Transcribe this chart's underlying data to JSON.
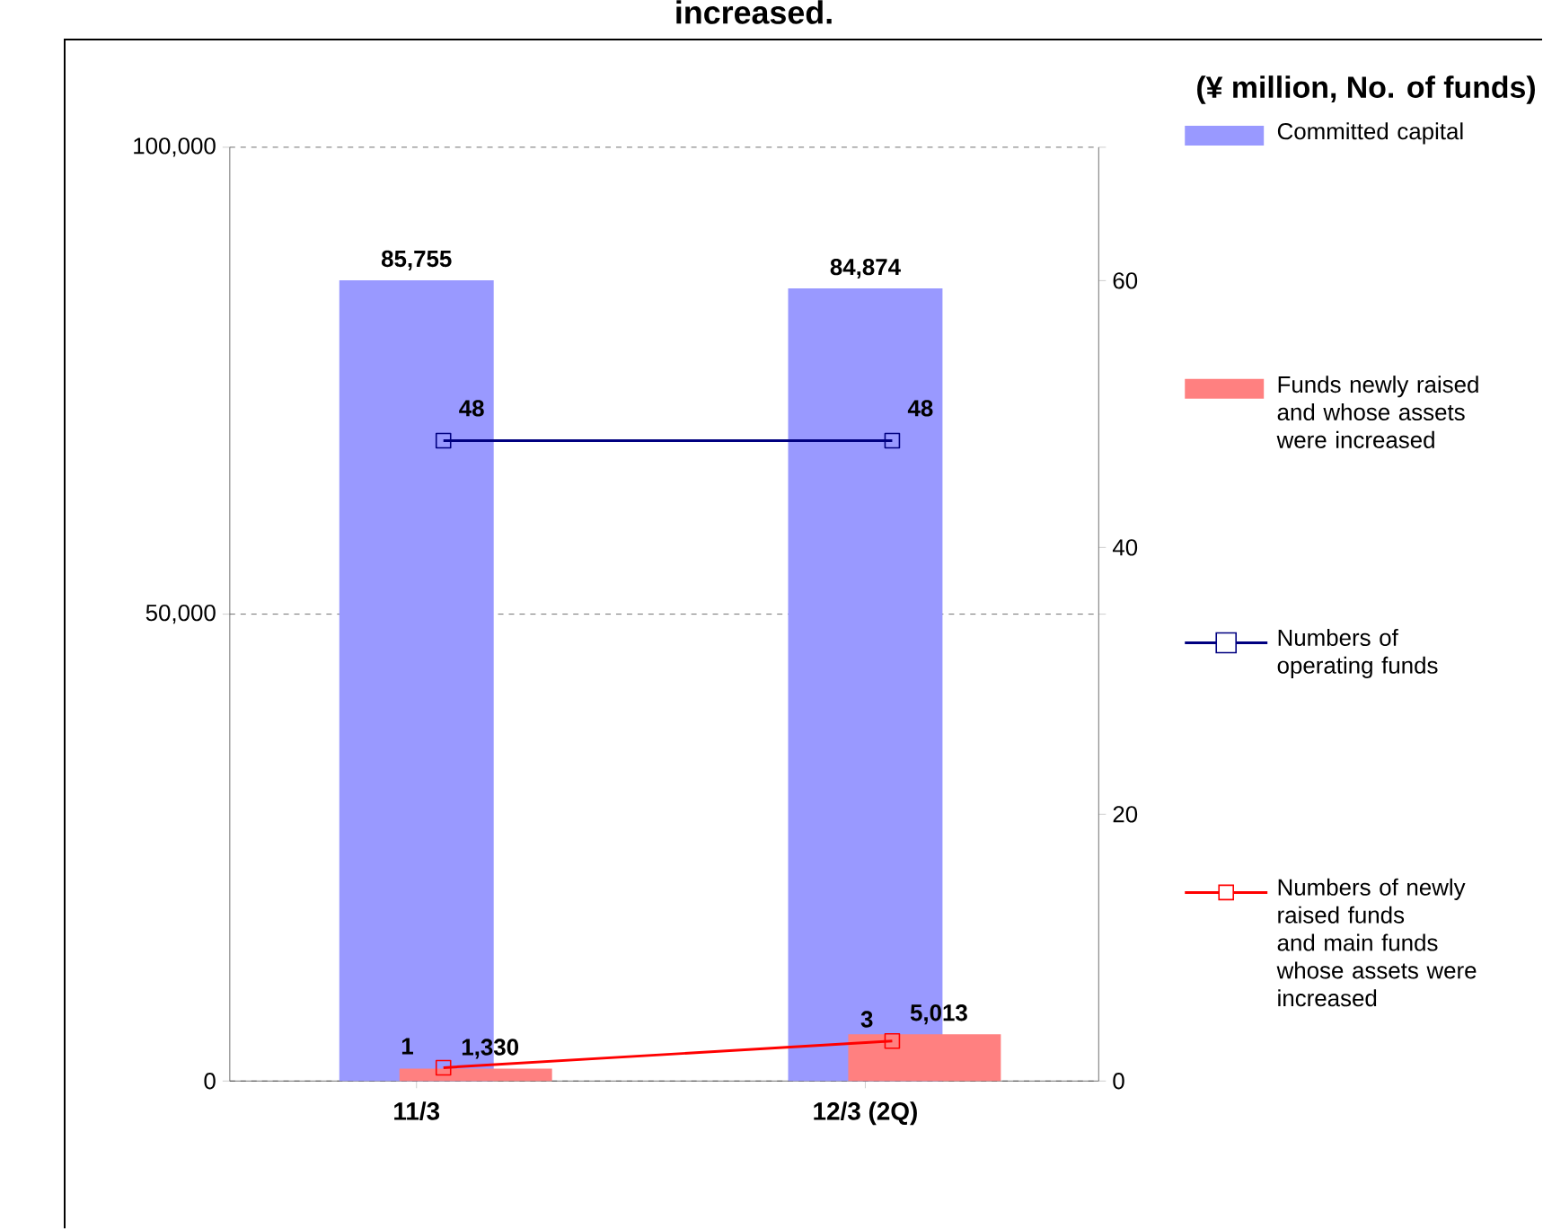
{
  "chart_data": {
    "type": "bar",
    "title": "increased.",
    "annotations": [
      "(¥ million, No. of funds)"
    ],
    "categories": [
      "11/3",
      "12/3 (2Q)"
    ],
    "series": [
      {
        "name": "Committed capital",
        "color": "#9999ff",
        "values": [
          85755,
          84874
        ],
        "value_labels": [
          "85,755",
          "84,874"
        ]
      },
      {
        "name": "Funds newly raised and whose assets were increased",
        "color": "#ff8080",
        "values": [
          1330,
          5013
        ],
        "value_labels": [
          "1,330",
          "5,013"
        ]
      },
      {
        "name": "Numbers of operating funds",
        "type": "line",
        "axis": "y2",
        "color": "#000080",
        "marker": "square",
        "values": [
          48,
          48
        ],
        "value_labels": [
          "48",
          "48"
        ]
      },
      {
        "name": "Numbers of newly raised funds and main funds whose assets were increased",
        "type": "line",
        "axis": "y2",
        "color": "#ff0000",
        "marker": "square",
        "values": [
          1,
          3
        ],
        "value_labels": [
          "1",
          "3"
        ]
      }
    ],
    "ylim": [
      0,
      100000
    ],
    "yticks": [
      {
        "value": 0,
        "label": "0"
      },
      {
        "value": 50000,
        "label": "50,000"
      },
      {
        "value": 100000,
        "label": "100,000"
      }
    ],
    "y2lim": [
      0,
      70
    ],
    "y2ticks": [
      0,
      20,
      {
        "value": 35,
        "label": null
      },
      40,
      60,
      {
        "value": 70,
        "label": null
      }
    ],
    "grid": "y",
    "legend": "right"
  }
}
